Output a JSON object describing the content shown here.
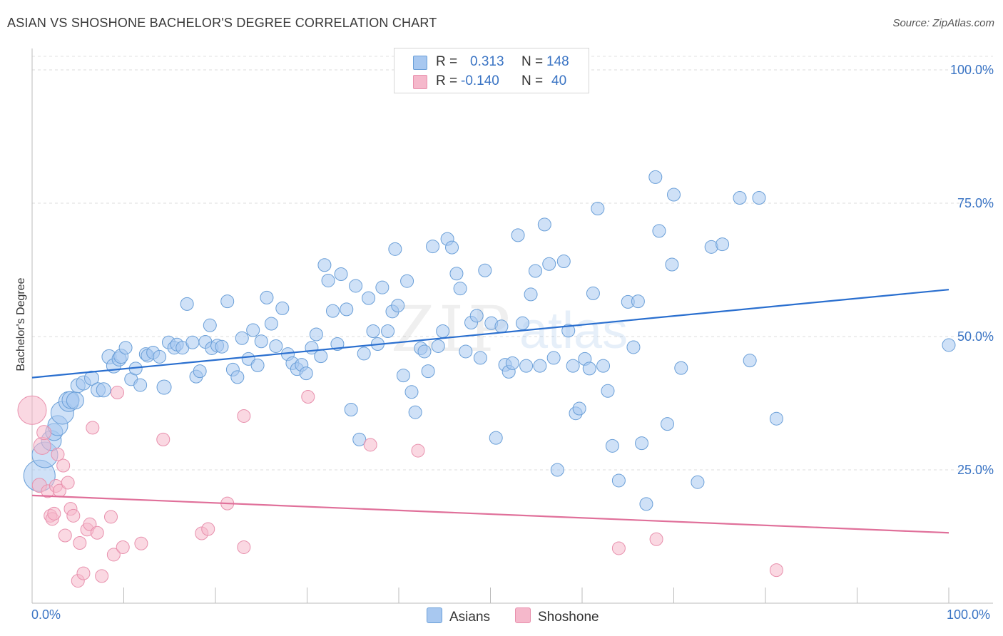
{
  "header": {
    "title": "ASIAN VS SHOSHONE BACHELOR'S DEGREE CORRELATION CHART",
    "source": "Source: ZipAtlas.com"
  },
  "legend": {
    "rows": [
      {
        "r_label": "R =",
        "r_value": "0.313",
        "n_label": "N =",
        "n_value": "148",
        "color": "#a8c8f0"
      },
      {
        "r_label": "R =",
        "r_value": "-0.140",
        "n_label": "N =",
        "n_value": "40",
        "color": "#f5b8cb"
      }
    ],
    "series_names": [
      "Asians",
      "Shoshone"
    ]
  },
  "axes": {
    "x_min_label": "0.0%",
    "x_max_label": "100.0%",
    "y_label": "Bachelor's Degree",
    "y_ticks": [
      "100.0%",
      "75.0%",
      "50.0%",
      "25.0%"
    ]
  },
  "colors": {
    "asians_fill": "#a8c8f0",
    "asians_stroke": "#6a9fd8",
    "asians_line": "#2a6fcf",
    "shoshone_fill": "#f5b8cb",
    "shoshone_stroke": "#e890ad",
    "shoshone_line": "#e0709a",
    "tick_text": "#3a74c4"
  },
  "chart_data": {
    "type": "scatter",
    "title": "ASIAN VS SHOSHONE BACHELOR'S DEGREE CORRELATION CHART",
    "xlabel": "",
    "ylabel": "Bachelor's Degree",
    "xlim": [
      0,
      100
    ],
    "ylim": [
      0,
      100
    ],
    "grid": true,
    "legend_position": "top-center",
    "series": [
      {
        "name": "Asians",
        "trend": {
          "x": [
            0,
            100
          ],
          "y": [
            42.3,
            58.8
          ]
        },
        "points": [
          [
            0.8,
            23.9,
            22
          ],
          [
            1.4,
            27.8,
            18
          ],
          [
            2.1,
            30.5,
            14
          ],
          [
            2.4,
            32.1,
            12
          ],
          [
            2.8,
            33.3,
            14
          ],
          [
            3.3,
            35.7,
            16
          ],
          [
            4,
            37.8,
            14
          ],
          [
            4.2,
            38.1,
            12
          ],
          [
            4.7,
            38,
            12
          ],
          [
            5,
            40.8,
            10
          ],
          [
            5.6,
            41.3,
            10
          ],
          [
            6.5,
            42.2,
            10
          ],
          [
            7.2,
            40,
            10
          ],
          [
            7.8,
            40,
            10
          ],
          [
            8.4,
            46.2,
            10
          ],
          [
            8.9,
            44.5,
            10
          ],
          [
            9.5,
            45.8,
            10
          ],
          [
            9.7,
            46.3,
            10
          ],
          [
            10.2,
            47.9,
            9
          ],
          [
            10.8,
            42,
            9
          ],
          [
            11.3,
            44,
            9
          ],
          [
            11.8,
            40.9,
            9
          ],
          [
            12.4,
            46.7,
            9
          ],
          [
            12.6,
            46.4,
            9
          ],
          [
            13.2,
            47,
            9
          ],
          [
            13.9,
            46.2,
            9
          ],
          [
            14.4,
            40.5,
            10
          ],
          [
            14.9,
            48.9,
            9
          ],
          [
            15.5,
            47.9,
            9
          ],
          [
            15.8,
            48.5,
            9
          ],
          [
            16.4,
            47.9,
            9
          ],
          [
            16.9,
            56.1,
            9
          ],
          [
            17.5,
            48.9,
            9
          ],
          [
            17.9,
            42.5,
            9
          ],
          [
            18.3,
            43.5,
            9
          ],
          [
            18.9,
            49,
            9
          ],
          [
            19.4,
            52.1,
            9
          ],
          [
            19.6,
            47.8,
            9
          ],
          [
            20.2,
            48.3,
            9
          ],
          [
            20.7,
            48.1,
            9
          ],
          [
            21.3,
            56.6,
            9
          ],
          [
            21.9,
            43.8,
            9
          ],
          [
            22.4,
            42.4,
            9
          ],
          [
            22.9,
            49.7,
            9
          ],
          [
            23.6,
            45.8,
            9
          ],
          [
            24.1,
            51.2,
            9
          ],
          [
            24.6,
            44.6,
            9
          ],
          [
            25,
            49.1,
            9
          ],
          [
            25.6,
            57.3,
            9
          ],
          [
            26.1,
            52.4,
            9
          ],
          [
            26.6,
            48.2,
            9
          ],
          [
            27.3,
            55.3,
            9
          ],
          [
            27.9,
            46.7,
            9
          ],
          [
            28.4,
            45,
            9
          ],
          [
            28.9,
            43.9,
            9
          ],
          [
            29.4,
            44.7,
            9
          ],
          [
            29.9,
            43.1,
            9
          ],
          [
            30.5,
            47.9,
            9
          ],
          [
            31,
            50.4,
            9
          ],
          [
            31.5,
            46.3,
            9
          ],
          [
            31.9,
            63.4,
            9
          ],
          [
            32.3,
            60.5,
            9
          ],
          [
            32.8,
            54.8,
            9
          ],
          [
            33.3,
            48.6,
            9
          ],
          [
            33.7,
            61.7,
            9
          ],
          [
            34.3,
            55.1,
            9
          ],
          [
            34.8,
            36.3,
            9
          ],
          [
            35.3,
            59.5,
            9
          ],
          [
            35.7,
            30.7,
            9
          ],
          [
            36.2,
            46.8,
            9
          ],
          [
            36.7,
            57.2,
            9
          ],
          [
            37.2,
            51,
            9
          ],
          [
            37.7,
            48.6,
            9
          ],
          [
            38.2,
            59.2,
            9
          ],
          [
            38.8,
            51,
            9
          ],
          [
            39.3,
            54.7,
            9
          ],
          [
            39.6,
            66.4,
            9
          ],
          [
            39.9,
            55.8,
            9
          ],
          [
            40.5,
            42.7,
            9
          ],
          [
            40.9,
            60.4,
            9
          ],
          [
            41.4,
            39.6,
            9
          ],
          [
            41.8,
            35.8,
            9
          ],
          [
            42.4,
            47.8,
            9
          ],
          [
            42.8,
            47.2,
            9
          ],
          [
            43.2,
            43.5,
            9
          ],
          [
            43.7,
            66.9,
            9
          ],
          [
            44.3,
            48.2,
            9
          ],
          [
            44.8,
            51,
            9
          ],
          [
            45.3,
            68.3,
            9
          ],
          [
            45.8,
            66.7,
            9
          ],
          [
            46.3,
            61.8,
            9
          ],
          [
            46.7,
            59,
            9
          ],
          [
            47.3,
            47.2,
            9
          ],
          [
            47.9,
            52.6,
            9
          ],
          [
            48.5,
            53.9,
            9
          ],
          [
            48.9,
            46,
            9
          ],
          [
            49.4,
            62.4,
            9
          ],
          [
            50.1,
            52.5,
            9
          ],
          [
            50.6,
            31,
            9
          ],
          [
            51.2,
            51.9,
            9
          ],
          [
            51.6,
            44.7,
            9
          ],
          [
            52,
            43.4,
            9
          ],
          [
            52.4,
            45,
            9
          ],
          [
            53,
            69,
            9
          ],
          [
            53.5,
            52.5,
            9
          ],
          [
            53.9,
            44.5,
            9
          ],
          [
            54.4,
            57.9,
            9
          ],
          [
            54.9,
            62.3,
            9
          ],
          [
            55.4,
            44.5,
            9
          ],
          [
            55.9,
            71,
            9
          ],
          [
            56.4,
            63.6,
            9
          ],
          [
            56.9,
            46,
            9
          ],
          [
            57.3,
            25,
            9
          ],
          [
            58,
            64.1,
            9
          ],
          [
            58.5,
            51.1,
            9
          ],
          [
            59,
            44.5,
            9
          ],
          [
            59.3,
            35.6,
            9
          ],
          [
            59.7,
            36.5,
            9
          ],
          [
            60.3,
            45.8,
            9
          ],
          [
            60.8,
            44,
            9
          ],
          [
            61.2,
            58.1,
            9
          ],
          [
            61.7,
            74,
            9
          ],
          [
            62.3,
            44.5,
            9
          ],
          [
            62.8,
            39.8,
            9
          ],
          [
            63.3,
            29.5,
            9
          ],
          [
            64,
            23,
            9
          ],
          [
            65,
            56.5,
            9
          ],
          [
            65.6,
            48,
            9
          ],
          [
            66.1,
            56.6,
            9
          ],
          [
            66.5,
            30,
            9
          ],
          [
            67,
            18.6,
            9
          ],
          [
            68,
            79.9,
            9
          ],
          [
            68.4,
            69.8,
            9
          ],
          [
            69.3,
            33.6,
            9
          ],
          [
            69.8,
            63.5,
            9
          ],
          [
            70,
            76.6,
            9
          ],
          [
            70.8,
            44.1,
            9
          ],
          [
            72.6,
            22.7,
            9
          ],
          [
            74.1,
            66.8,
            9
          ],
          [
            75.3,
            67.3,
            9
          ],
          [
            77.2,
            76,
            9
          ],
          [
            78.3,
            45.5,
            9
          ],
          [
            79.3,
            76,
            9
          ],
          [
            81.2,
            34.6,
            9
          ],
          [
            100,
            48.4,
            9
          ]
        ]
      },
      {
        "name": "Shoshone",
        "trend": {
          "x": [
            0,
            100
          ],
          "y": [
            20.2,
            13.2
          ]
        },
        "points": [
          [
            0,
            36.2,
            20
          ],
          [
            0.8,
            22.1,
            10
          ],
          [
            1.1,
            29.5,
            12
          ],
          [
            1.3,
            32,
            10
          ],
          [
            1.7,
            21,
            9
          ],
          [
            2,
            16.4,
            9
          ],
          [
            2.2,
            15.8,
            9
          ],
          [
            2.4,
            16.8,
            9
          ],
          [
            2.6,
            22,
            9
          ],
          [
            2.8,
            27.9,
            9
          ],
          [
            3,
            21.1,
            9
          ],
          [
            3.4,
            25.8,
            9
          ],
          [
            3.6,
            12.7,
            9
          ],
          [
            3.9,
            22.6,
            9
          ],
          [
            4.2,
            17.7,
            9
          ],
          [
            4.5,
            16.4,
            9
          ],
          [
            5,
            4.2,
            9
          ],
          [
            5.2,
            11.3,
            9
          ],
          [
            5.6,
            5.6,
            9
          ],
          [
            6,
            13.8,
            9
          ],
          [
            6.3,
            14.8,
            9
          ],
          [
            6.6,
            32.9,
            9
          ],
          [
            7.1,
            13.2,
            9
          ],
          [
            7.6,
            5.1,
            9
          ],
          [
            8.6,
            16.2,
            9
          ],
          [
            8.9,
            9.1,
            9
          ],
          [
            9.3,
            39.5,
            9
          ],
          [
            9.9,
            10.5,
            9
          ],
          [
            11.9,
            11.2,
            9
          ],
          [
            14.3,
            30.7,
            9
          ],
          [
            18.5,
            13.1,
            9
          ],
          [
            19.2,
            13.9,
            9
          ],
          [
            21.3,
            18.7,
            9
          ],
          [
            23.1,
            10.5,
            9
          ],
          [
            23.1,
            35.1,
            9
          ],
          [
            30.1,
            38.7,
            9
          ],
          [
            36.9,
            29.7,
            9
          ],
          [
            42.1,
            28.6,
            9
          ],
          [
            64,
            10.3,
            9
          ],
          [
            68.1,
            12,
            9
          ],
          [
            81.2,
            6.2,
            9
          ]
        ]
      }
    ]
  }
}
